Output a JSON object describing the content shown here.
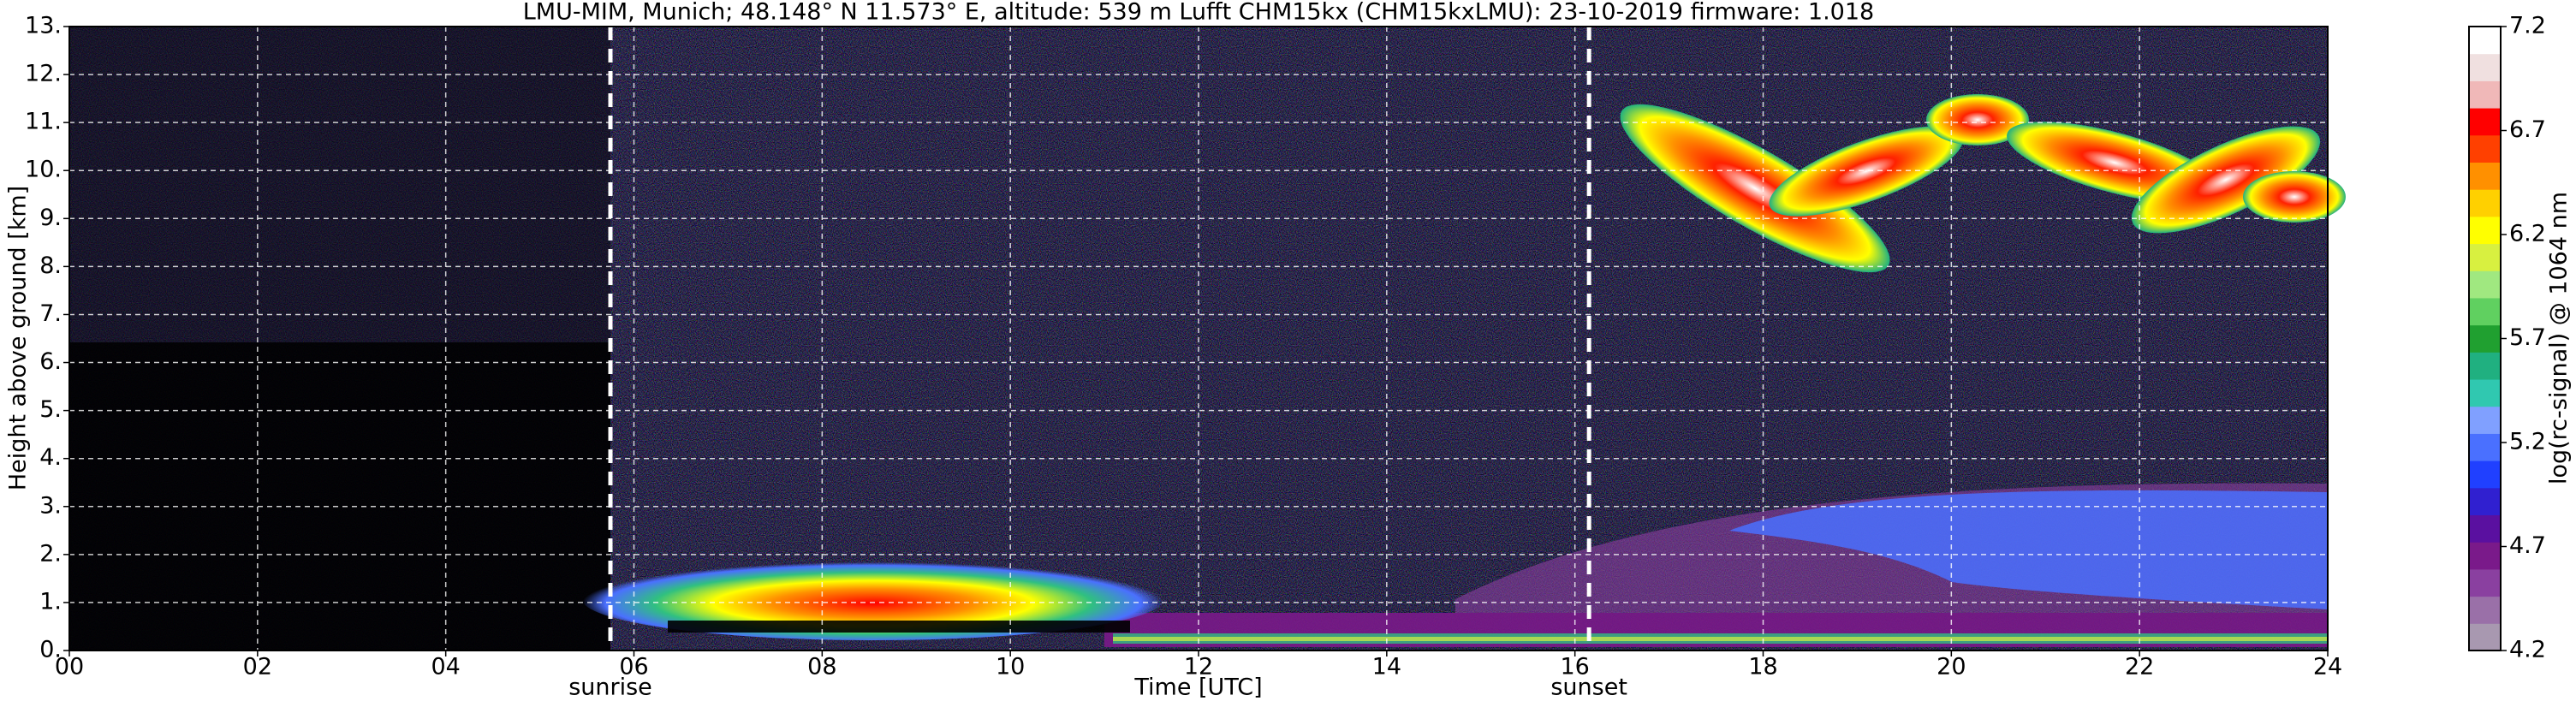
{
  "chart_data": {
    "type": "heatmap",
    "title": "LMU-MIM, Munich; 48.148° N 11.573° E, altitude: 539 m    Lufft CHM15kx (CHM15kxLMU): 23-10-2019    firmware: 1.018",
    "xlabel": "Time [UTC]",
    "ylabel": "Height above ground [km]",
    "xlim": [
      0,
      24
    ],
    "xticks": [
      {
        "value": 0,
        "label": "00"
      },
      {
        "value": 2,
        "label": "02"
      },
      {
        "value": 4,
        "label": "04"
      },
      {
        "value": 6,
        "label": "06"
      },
      {
        "value": 8,
        "label": "08"
      },
      10,
      12,
      14,
      16,
      18,
      20,
      22,
      24
    ],
    "ylim": [
      0,
      13
    ],
    "yticks": [
      {
        "value": 0,
        "label": "0."
      },
      {
        "value": 1,
        "label": "1."
      },
      {
        "value": 2,
        "label": "2."
      },
      {
        "value": 3,
        "label": "3."
      },
      {
        "value": 4,
        "label": "4."
      },
      {
        "value": 5,
        "label": "5."
      },
      {
        "value": 6,
        "label": "6."
      },
      {
        "value": 7,
        "label": "7."
      },
      {
        "value": 8,
        "label": "8."
      },
      {
        "value": 9,
        "label": "9."
      },
      {
        "value": 10,
        "label": "10."
      },
      {
        "value": 11,
        "label": "11."
      },
      {
        "value": 12,
        "label": "12."
      },
      {
        "value": 13,
        "label": "13."
      }
    ],
    "grid": true,
    "annotations": [
      {
        "x": 5.75,
        "text": "sunrise"
      },
      {
        "x": 16.15,
        "text": "sunset"
      }
    ],
    "colorbar": {
      "label": "log(rc-signal) @ 1064 nm",
      "lim": [
        4.2,
        7.2
      ],
      "ticks": [
        4.2,
        4.7,
        5.2,
        5.7,
        6.2,
        6.7,
        7.2
      ],
      "colormap": [
        "#a898b0",
        "#9a70a8",
        "#8a40a0",
        "#7a1a8a",
        "#5a10a0",
        "#3020d0",
        "#2040ff",
        "#4a70ff",
        "#80a0ff",
        "#30c8b0",
        "#20b080",
        "#20a030",
        "#60d060",
        "#a0e880",
        "#d8f040",
        "#ffff00",
        "#ffd000",
        "#ff9000",
        "#ff4000",
        "#ff0000",
        "#f0b8b8",
        "#f0e0e0",
        "#ffffff"
      ]
    }
  }
}
